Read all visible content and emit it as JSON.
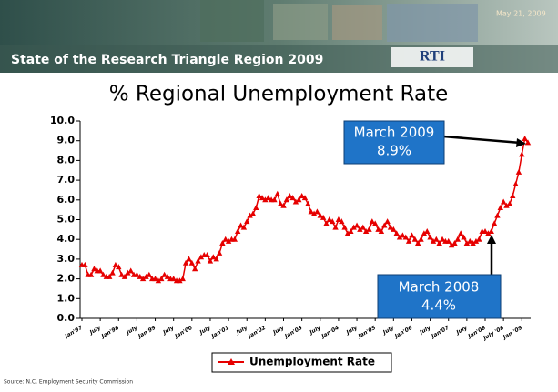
{
  "header": {
    "title": "State of the Research Triangle Region 2009",
    "date": "May 21, 2009",
    "logo": "RTI"
  },
  "source": "Source: N.C. Employment Security Commission",
  "chart_data": {
    "type": "line",
    "title": "% Regional Unemployment Rate",
    "categories": [
      "Jan'97",
      null,
      null,
      null,
      null,
      null,
      "July",
      null,
      null,
      null,
      null,
      null,
      "Jan'98",
      null,
      null,
      null,
      null,
      null,
      "July",
      null,
      null,
      null,
      null,
      null,
      "Jan'99",
      null,
      null,
      null,
      null,
      null,
      "July",
      null,
      null,
      null,
      null,
      null,
      "Jan'00",
      null,
      null,
      null,
      null,
      null,
      "July",
      null,
      null,
      null,
      null,
      null,
      "Jan'01",
      null,
      null,
      null,
      null,
      null,
      "July",
      null,
      null,
      null,
      null,
      null,
      "Jan'02",
      null,
      null,
      null,
      null,
      null,
      "July",
      null,
      null,
      null,
      null,
      null,
      "Jan'03",
      null,
      null,
      null,
      null,
      null,
      "July",
      null,
      null,
      null,
      null,
      null,
      "Jan'04",
      null,
      null,
      null,
      null,
      null,
      "July",
      null,
      null,
      null,
      null,
      null,
      "Jan'05",
      null,
      null,
      null,
      null,
      null,
      "July",
      null,
      null,
      null,
      null,
      null,
      "Jan'06",
      null,
      null,
      null,
      null,
      null,
      "July",
      null,
      null,
      null,
      null,
      null,
      "Jan'07",
      null,
      null,
      null,
      null,
      null,
      "July",
      null,
      null,
      null,
      null,
      null,
      "Jan'08",
      null,
      null,
      null,
      null,
      null,
      "July '08",
      null,
      null,
      null,
      null,
      null,
      "Jan '09",
      null,
      null
    ],
    "series": [
      {
        "name": "Unemployment Rate",
        "color": "#e60000",
        "values": [
          2.7,
          2.7,
          2.2,
          2.2,
          2.5,
          2.4,
          2.4,
          2.2,
          2.1,
          2.1,
          2.3,
          2.7,
          2.6,
          2.2,
          2.1,
          2.3,
          2.4,
          2.2,
          2.2,
          2.1,
          2.0,
          2.1,
          2.2,
          2.0,
          2.0,
          1.9,
          2.0,
          2.2,
          2.1,
          2.0,
          2.0,
          1.9,
          1.9,
          2.0,
          2.8,
          3.0,
          2.8,
          2.5,
          2.9,
          3.1,
          3.2,
          3.2,
          2.9,
          3.1,
          3.0,
          3.3,
          3.8,
          4.0,
          3.9,
          4.0,
          4.0,
          4.4,
          4.7,
          4.6,
          4.9,
          5.2,
          5.3,
          5.6,
          6.2,
          6.1,
          6.0,
          6.1,
          6.0,
          6.0,
          6.3,
          5.8,
          5.7,
          6.0,
          6.2,
          6.1,
          5.9,
          6.0,
          6.2,
          6.1,
          5.8,
          5.4,
          5.3,
          5.4,
          5.2,
          5.1,
          4.8,
          5.0,
          4.9,
          4.6,
          5.0,
          4.9,
          4.6,
          4.3,
          4.4,
          4.6,
          4.7,
          4.5,
          4.6,
          4.4,
          4.5,
          4.9,
          4.8,
          4.5,
          4.4,
          4.7,
          4.9,
          4.6,
          4.5,
          4.3,
          4.1,
          4.2,
          4.1,
          3.9,
          4.2,
          4.0,
          3.8,
          4.0,
          4.3,
          4.4,
          4.1,
          3.9,
          4.0,
          3.8,
          4.0,
          3.9,
          3.9,
          3.7,
          3.8,
          4.0,
          4.3,
          4.1,
          3.8,
          3.9,
          3.8,
          3.9,
          4.0,
          4.4,
          4.4,
          4.3,
          4.4,
          4.8,
          5.2,
          5.6,
          5.9,
          5.7,
          5.8,
          6.2,
          6.8,
          7.4,
          8.3,
          9.1,
          8.9
        ]
      }
    ],
    "ylim": [
      0,
      10
    ],
    "yticks": [
      {
        "value": 0,
        "label": "0.0"
      },
      {
        "value": 1,
        "label": "1.0"
      },
      {
        "value": 2,
        "label": "2.0"
      },
      {
        "value": 3,
        "label": "3.0"
      },
      {
        "value": 4,
        "label": "4.0"
      },
      {
        "value": 5,
        "label": "5.0"
      },
      {
        "value": 6,
        "label": "6.0"
      },
      {
        "value": 7,
        "label": "7.0"
      },
      {
        "value": 8,
        "label": "8.0"
      },
      {
        "value": 9,
        "label": "9.0"
      },
      {
        "value": 10,
        "label": "10.0"
      }
    ],
    "grid": false,
    "annotations": [
      {
        "title": "March 2009",
        "text": "8.9%"
      },
      {
        "title": "March 2008",
        "text": "4.4%"
      }
    ]
  }
}
